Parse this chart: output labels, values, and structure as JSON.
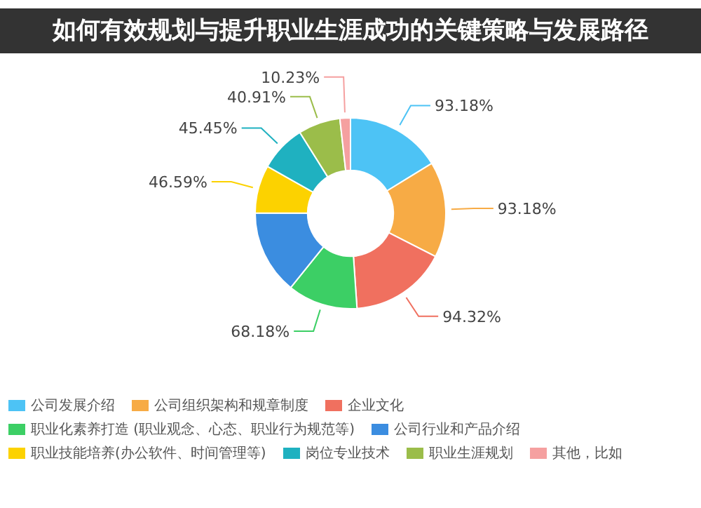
{
  "chart_data": {
    "type": "donut",
    "title": "如何有效规划与提升职业生涯成功的关键策略与发展路径",
    "categories": [
      "公司发展介绍",
      "公司组织架构和规章制度",
      "企业文化",
      "职业化素养打造 (职业观念、心态、职业行为规范等)",
      "公司行业和产品介绍",
      "职业技能培养(办公软件、时间管理等)",
      "岗位专业技术",
      "职业生涯规划",
      "其他，比如"
    ],
    "values": [
      93.18,
      93.18,
      94.32,
      68.18,
      81.82,
      46.59,
      45.45,
      40.91,
      10.23
    ],
    "value_labels": [
      "93.18%",
      "93.18%",
      "94.32%",
      "68.18%",
      null,
      "46.59%",
      "45.45%",
      "40.91%",
      "10.23%"
    ],
    "colors": [
      "#4dc3f5",
      "#f7ab45",
      "#f0705f",
      "#3ccf65",
      "#3b8de0",
      "#fcd200",
      "#1fb1c0",
      "#9bbd4a",
      "#f5a0a0"
    ],
    "legend": "bottom"
  }
}
